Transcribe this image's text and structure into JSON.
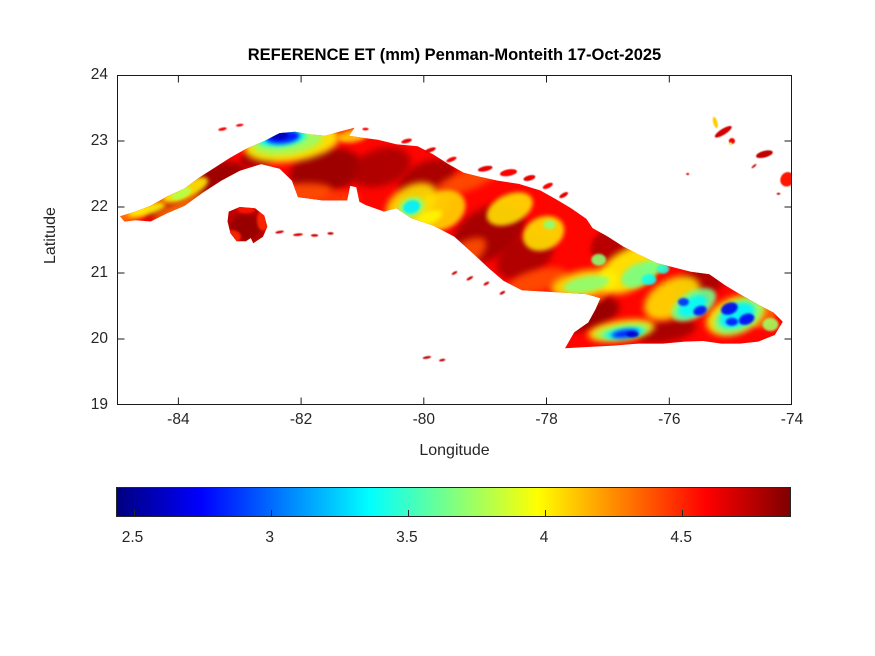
{
  "figure": {
    "background": "#ffffff",
    "text_color": "#262626",
    "axes_color": "#1a1a1a",
    "title": "REFERENCE ET (mm) Penman-Monteith 17-Oct-2025"
  },
  "chart_data": {
    "type": "heatmap",
    "title": "REFERENCE ET (mm) Penman-Monteith 17-Oct-2025",
    "xlabel": "Longitude",
    "ylabel": "Latitude",
    "xlim": [
      -85,
      -74
    ],
    "ylim": [
      19,
      24
    ],
    "xticks": [
      -84,
      -82,
      -80,
      -78,
      -76,
      -74
    ],
    "yticks": [
      24,
      23,
      22,
      21,
      20,
      19
    ],
    "grid": false,
    "colormap": "jet",
    "colorbar": {
      "orientation": "horizontal",
      "value_range_mm": [
        2.44,
        4.9
      ],
      "ticks": [
        2.5,
        3,
        3.5,
        4,
        4.5
      ]
    },
    "units": "mm",
    "region_label": "Cuba",
    "base_et_mm": {
      "mainland": 4.58,
      "isla_juventud": 4.75
    },
    "mainland_outline_lonlat": [
      [
        -84.95,
        21.86
      ],
      [
        -84.7,
        21.93
      ],
      [
        -84.45,
        22.02
      ],
      [
        -84.18,
        22.16
      ],
      [
        -83.9,
        22.28
      ],
      [
        -83.65,
        22.45
      ],
      [
        -83.4,
        22.6
      ],
      [
        -83.15,
        22.75
      ],
      [
        -82.9,
        22.88
      ],
      [
        -82.6,
        23.0
      ],
      [
        -82.35,
        23.12
      ],
      [
        -82.1,
        23.14
      ],
      [
        -81.85,
        23.1
      ],
      [
        -81.6,
        23.08
      ],
      [
        -81.42,
        23.13
      ],
      [
        -81.13,
        23.2
      ],
      [
        -81.22,
        23.08
      ],
      [
        -81.0,
        23.05
      ],
      [
        -80.75,
        23.02
      ],
      [
        -80.45,
        22.95
      ],
      [
        -80.1,
        22.92
      ],
      [
        -79.85,
        22.8
      ],
      [
        -79.6,
        22.65
      ],
      [
        -79.35,
        22.52
      ],
      [
        -79.1,
        22.46
      ],
      [
        -78.8,
        22.4
      ],
      [
        -78.45,
        22.35
      ],
      [
        -78.1,
        22.25
      ],
      [
        -77.85,
        22.12
      ],
      [
        -77.6,
        21.98
      ],
      [
        -77.35,
        21.82
      ],
      [
        -77.25,
        21.68
      ],
      [
        -77.0,
        21.55
      ],
      [
        -76.75,
        21.4
      ],
      [
        -76.5,
        21.28
      ],
      [
        -76.2,
        21.15
      ],
      [
        -75.9,
        21.08
      ],
      [
        -75.65,
        21.02
      ],
      [
        -75.35,
        20.98
      ],
      [
        -75.1,
        20.82
      ],
      [
        -74.85,
        20.68
      ],
      [
        -74.55,
        20.52
      ],
      [
        -74.3,
        20.4
      ],
      [
        -74.15,
        20.26
      ],
      [
        -74.28,
        20.06
      ],
      [
        -74.55,
        19.96
      ],
      [
        -74.85,
        19.93
      ],
      [
        -75.15,
        19.93
      ],
      [
        -75.45,
        19.97
      ],
      [
        -75.75,
        19.96
      ],
      [
        -76.1,
        19.93
      ],
      [
        -76.5,
        19.93
      ],
      [
        -76.9,
        19.9
      ],
      [
        -77.3,
        19.88
      ],
      [
        -77.7,
        19.86
      ],
      [
        -77.55,
        20.1
      ],
      [
        -77.32,
        20.25
      ],
      [
        -77.2,
        20.45
      ],
      [
        -77.12,
        20.62
      ],
      [
        -77.35,
        20.68
      ],
      [
        -77.7,
        20.7
      ],
      [
        -78.05,
        20.72
      ],
      [
        -78.4,
        20.74
      ],
      [
        -78.7,
        20.88
      ],
      [
        -78.95,
        21.08
      ],
      [
        -79.2,
        21.3
      ],
      [
        -79.5,
        21.55
      ],
      [
        -79.85,
        21.72
      ],
      [
        -80.2,
        21.83
      ],
      [
        -80.45,
        21.98
      ],
      [
        -80.65,
        21.93
      ],
      [
        -80.95,
        22.03
      ],
      [
        -81.05,
        22.08
      ],
      [
        -81.1,
        22.3
      ],
      [
        -81.2,
        22.32
      ],
      [
        -81.25,
        22.1
      ],
      [
        -81.65,
        22.1
      ],
      [
        -82.05,
        22.15
      ],
      [
        -82.15,
        22.4
      ],
      [
        -82.35,
        22.58
      ],
      [
        -82.65,
        22.65
      ],
      [
        -83.0,
        22.55
      ],
      [
        -83.3,
        22.4
      ],
      [
        -83.6,
        22.22
      ],
      [
        -83.9,
        22.02
      ],
      [
        -84.2,
        21.9
      ],
      [
        -84.45,
        21.78
      ],
      [
        -84.7,
        21.8
      ],
      [
        -84.88,
        21.78
      ]
    ],
    "isla_juventud_outline_lonlat": [
      [
        -83.18,
        21.93
      ],
      [
        -83.0,
        22.0
      ],
      [
        -82.75,
        21.98
      ],
      [
        -82.6,
        21.87
      ],
      [
        -82.55,
        21.7
      ],
      [
        -82.62,
        21.55
      ],
      [
        -82.78,
        21.45
      ],
      [
        -82.82,
        21.53
      ],
      [
        -82.9,
        21.48
      ],
      [
        -83.05,
        21.48
      ],
      [
        -83.15,
        21.6
      ],
      [
        -83.2,
        21.78
      ]
    ],
    "patch_format": [
      "lon_center",
      "lat_center",
      "radius_lon_deg",
      "radius_lat_deg",
      "rotation_deg",
      "et_mm"
    ],
    "mainland_patches": [
      [
        -84.15,
        22.02,
        0.45,
        0.13,
        -18,
        4.85
      ],
      [
        -83.35,
        22.38,
        0.5,
        0.28,
        -22,
        4.85
      ],
      [
        -82.7,
        22.75,
        0.3,
        0.15,
        -15,
        4.8
      ],
      [
        -81.6,
        22.55,
        0.6,
        0.33,
        -12,
        4.85
      ],
      [
        -80.7,
        22.6,
        0.5,
        0.28,
        -18,
        4.8
      ],
      [
        -79.95,
        22.4,
        0.5,
        0.28,
        -25,
        4.82
      ],
      [
        -78.95,
        21.6,
        0.65,
        0.38,
        -30,
        4.83
      ],
      [
        -78.35,
        21.25,
        0.5,
        0.3,
        -30,
        4.8
      ],
      [
        -77.45,
        20.38,
        0.65,
        0.26,
        -12,
        4.86
      ],
      [
        -76.05,
        20.12,
        0.5,
        0.16,
        -10,
        4.82
      ],
      [
        -75.5,
        20.85,
        0.5,
        0.24,
        -28,
        4.8
      ],
      [
        -74.62,
        20.62,
        0.3,
        0.16,
        -30,
        4.8
      ],
      [
        -76.9,
        21.45,
        0.4,
        0.25,
        -25,
        4.78
      ],
      [
        -84.78,
        21.88,
        0.28,
        0.1,
        -15,
        4.3
      ],
      [
        -84.35,
        22.12,
        0.5,
        0.1,
        -18,
        4.35
      ],
      [
        -83.95,
        22.0,
        0.5,
        0.1,
        -22,
        4.32
      ],
      [
        -82.0,
        22.22,
        0.5,
        0.14,
        -5,
        4.4
      ],
      [
        -81.5,
        22.14,
        0.45,
        0.12,
        0,
        4.45
      ],
      [
        -80.0,
        21.95,
        0.5,
        0.2,
        -30,
        4.35
      ],
      [
        -79.45,
        21.2,
        0.55,
        0.2,
        -35,
        4.4
      ],
      [
        -79.3,
        22.4,
        0.55,
        0.15,
        -20,
        4.4
      ],
      [
        -78.15,
        20.88,
        0.5,
        0.17,
        -15,
        4.4
      ],
      [
        -77.35,
        20.62,
        0.4,
        0.14,
        -20,
        4.4
      ],
      [
        -74.5,
        20.38,
        0.25,
        0.2,
        -40,
        4.35
      ],
      [
        -76.3,
        21.6,
        0.45,
        0.25,
        -25,
        4.4
      ],
      [
        -84.52,
        21.96,
        0.32,
        0.08,
        -15,
        4.0
      ],
      [
        -83.88,
        22.26,
        0.4,
        0.13,
        -25,
        4.02
      ],
      [
        -82.15,
        22.97,
        0.78,
        0.28,
        -8,
        4.0
      ],
      [
        -80.2,
        22.07,
        0.45,
        0.25,
        -30,
        4.05
      ],
      [
        -79.7,
        21.95,
        0.4,
        0.28,
        -30,
        4.08
      ],
      [
        -78.6,
        21.97,
        0.4,
        0.22,
        -25,
        4.05
      ],
      [
        -78.05,
        21.6,
        0.35,
        0.25,
        -25,
        4.05
      ],
      [
        -79.98,
        21.82,
        0.3,
        0.1,
        -20,
        4.0
      ],
      [
        -76.65,
        21.05,
        0.55,
        0.3,
        -30,
        4.0
      ],
      [
        -75.95,
        20.62,
        0.5,
        0.28,
        -30,
        4.05
      ],
      [
        -74.92,
        20.36,
        0.5,
        0.27,
        -22,
        4.0
      ],
      [
        -76.78,
        20.13,
        0.55,
        0.15,
        -8,
        4.0
      ],
      [
        -77.38,
        20.84,
        0.55,
        0.2,
        -10,
        4.05
      ],
      [
        -81.15,
        23.08,
        0.25,
        0.1,
        -10,
        4.1
      ],
      [
        -83.95,
        22.2,
        0.18,
        0.07,
        -25,
        3.8
      ],
      [
        -82.22,
        23.0,
        0.58,
        0.2,
        -8,
        3.72
      ],
      [
        -80.2,
        22.0,
        0.22,
        0.15,
        -20,
        3.7
      ],
      [
        -77.95,
        21.73,
        0.1,
        0.07,
        0,
        3.7
      ],
      [
        -77.15,
        21.2,
        0.12,
        0.09,
        0,
        3.7
      ],
      [
        -76.5,
        20.97,
        0.3,
        0.17,
        -25,
        3.65
      ],
      [
        -76.22,
        21.12,
        0.2,
        0.12,
        -25,
        3.7
      ],
      [
        -77.35,
        20.83,
        0.38,
        0.12,
        -10,
        3.7
      ],
      [
        -76.76,
        20.11,
        0.45,
        0.1,
        -8,
        3.65
      ],
      [
        -75.6,
        20.52,
        0.4,
        0.2,
        -30,
        3.65
      ],
      [
        -74.88,
        20.34,
        0.42,
        0.22,
        -25,
        3.62
      ],
      [
        -74.35,
        20.22,
        0.13,
        0.1,
        0,
        3.75
      ],
      [
        -82.32,
        23.05,
        0.4,
        0.13,
        -6,
        3.35
      ],
      [
        -80.2,
        22.0,
        0.14,
        0.1,
        -20,
        3.32
      ],
      [
        -76.33,
        20.9,
        0.12,
        0.08,
        0,
        3.4
      ],
      [
        -76.1,
        21.06,
        0.1,
        0.07,
        0,
        3.45
      ],
      [
        -76.73,
        20.09,
        0.33,
        0.08,
        -8,
        3.35
      ],
      [
        -75.62,
        20.5,
        0.26,
        0.13,
        -30,
        3.35
      ],
      [
        -74.9,
        20.36,
        0.3,
        0.17,
        -25,
        3.33
      ],
      [
        -82.3,
        23.06,
        0.28,
        0.1,
        -6,
        2.75
      ],
      [
        -82.35,
        23.08,
        0.14,
        0.06,
        -6,
        2.58
      ],
      [
        -76.72,
        20.08,
        0.22,
        0.06,
        -8,
        2.78
      ],
      [
        -76.6,
        20.07,
        0.1,
        0.045,
        0,
        2.62
      ],
      [
        -75.77,
        20.56,
        0.09,
        0.06,
        0,
        2.85
      ],
      [
        -75.5,
        20.43,
        0.11,
        0.07,
        -20,
        2.78
      ],
      [
        -75.02,
        20.46,
        0.14,
        0.09,
        -20,
        2.7
      ],
      [
        -74.74,
        20.3,
        0.13,
        0.08,
        -20,
        2.72
      ],
      [
        -74.98,
        20.26,
        0.1,
        0.06,
        0,
        2.8
      ]
    ],
    "isla_patches": [
      [
        -82.9,
        21.7,
        0.25,
        0.2,
        0,
        4.85
      ],
      [
        -83.12,
        21.55,
        0.14,
        0.1,
        0,
        4.5
      ],
      [
        -82.62,
        21.8,
        0.1,
        0.16,
        0,
        4.5
      ],
      [
        -82.9,
        21.97,
        0.15,
        0.07,
        0,
        4.55
      ]
    ],
    "islets": [
      [
        -83.28,
        23.18,
        0.07,
        0.022,
        -12,
        4.6
      ],
      [
        -83.0,
        23.24,
        0.06,
        0.02,
        -8,
        4.6
      ],
      [
        -80.95,
        23.18,
        0.05,
        0.02,
        0,
        4.6
      ],
      [
        -80.28,
        23.0,
        0.09,
        0.03,
        -15,
        4.62
      ],
      [
        -79.9,
        22.86,
        0.1,
        0.03,
        -20,
        4.65
      ],
      [
        -79.55,
        22.72,
        0.09,
        0.03,
        -22,
        4.6
      ],
      [
        -79.0,
        22.58,
        0.12,
        0.04,
        -12,
        4.65
      ],
      [
        -78.62,
        22.52,
        0.14,
        0.05,
        -10,
        4.6
      ],
      [
        -78.28,
        22.44,
        0.1,
        0.04,
        -15,
        4.65
      ],
      [
        -77.98,
        22.32,
        0.09,
        0.035,
        -25,
        4.6
      ],
      [
        -77.72,
        22.18,
        0.08,
        0.03,
        -30,
        4.65
      ],
      [
        -79.5,
        21.0,
        0.05,
        0.02,
        -30,
        4.7
      ],
      [
        -79.25,
        20.92,
        0.06,
        0.02,
        -30,
        4.7
      ],
      [
        -78.98,
        20.84,
        0.05,
        0.02,
        -30,
        4.7
      ],
      [
        -78.72,
        20.7,
        0.05,
        0.02,
        -30,
        4.7
      ],
      [
        -82.35,
        21.62,
        0.07,
        0.02,
        -10,
        4.7
      ],
      [
        -82.05,
        21.58,
        0.08,
        0.02,
        -5,
        4.7
      ],
      [
        -81.78,
        21.57,
        0.06,
        0.02,
        0,
        4.7
      ],
      [
        -81.52,
        21.6,
        0.05,
        0.02,
        0,
        4.7
      ],
      [
        -79.95,
        19.72,
        0.07,
        0.02,
        -10,
        4.75
      ],
      [
        -79.7,
        19.68,
        0.05,
        0.018,
        -10,
        4.75
      ],
      [
        -75.25,
        23.28,
        0.035,
        0.09,
        -15,
        4.1
      ],
      [
        -75.12,
        23.14,
        0.16,
        0.045,
        -32,
        4.7
      ],
      [
        -74.98,
        23.0,
        0.05,
        0.045,
        0,
        4.6
      ],
      [
        -75.0,
        22.96,
        0.025,
        0.02,
        0,
        3.8
      ],
      [
        -74.45,
        22.8,
        0.14,
        0.05,
        -15,
        4.75
      ],
      [
        -74.62,
        22.62,
        0.05,
        0.015,
        -40,
        4.7
      ],
      [
        -74.08,
        22.42,
        0.12,
        0.1,
        -60,
        4.55
      ],
      [
        -75.7,
        22.5,
        0.025,
        0.015,
        0,
        4.7
      ],
      [
        -74.22,
        22.2,
        0.03,
        0.015,
        0,
        4.7
      ]
    ]
  }
}
